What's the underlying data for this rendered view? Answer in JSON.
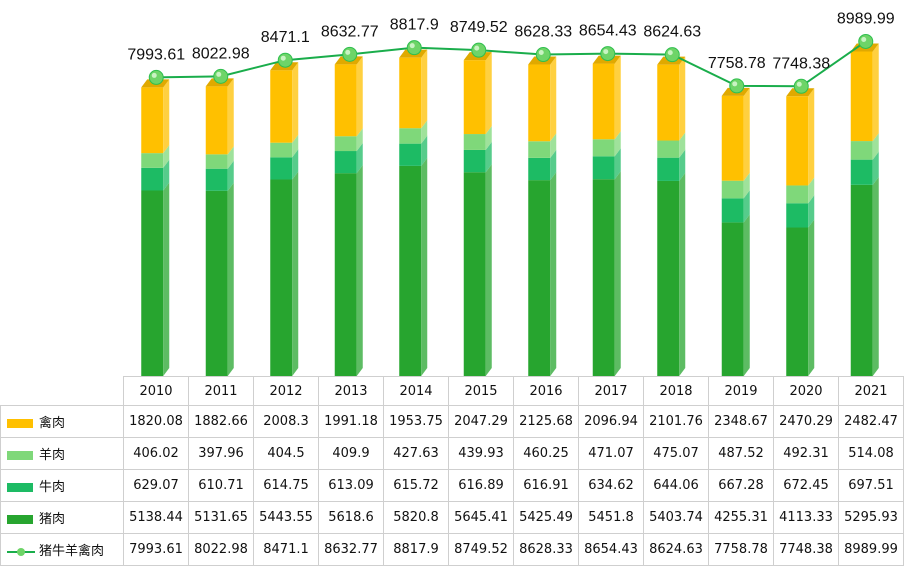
{
  "chart_data": {
    "type": "bar",
    "stacked": true,
    "categories": [
      "2010",
      "2011",
      "2012",
      "2013",
      "2014",
      "2015",
      "2016",
      "2017",
      "2018",
      "2019",
      "2020",
      "2021"
    ],
    "series": [
      {
        "name": "禽肉",
        "color": "#ffc000",
        "values": [
          1820.08,
          1882.66,
          2008.3,
          1991.18,
          1953.75,
          2047.29,
          2125.68,
          2096.94,
          2101.76,
          2348.67,
          2470.29,
          2482.47
        ]
      },
      {
        "name": "羊肉",
        "color": "#7fd87a",
        "values": [
          406.02,
          397.96,
          404.5,
          409.9,
          427.63,
          439.93,
          460.25,
          471.07,
          475.07,
          487.52,
          492.31,
          514.08
        ]
      },
      {
        "name": "牛肉",
        "color": "#1dbb64",
        "values": [
          629.07,
          610.71,
          614.75,
          613.09,
          615.72,
          616.89,
          616.91,
          634.62,
          644.06,
          667.28,
          672.45,
          697.51
        ]
      },
      {
        "name": "猪肉",
        "color": "#27a52f",
        "values": [
          5138.44,
          5131.65,
          5443.55,
          5618.6,
          5820.8,
          5645.41,
          5425.49,
          5451.8,
          5403.74,
          4255.31,
          4113.33,
          5295.93
        ]
      }
    ],
    "line": {
      "name": "猪牛羊禽肉",
      "color": "#1aad4b",
      "values": [
        7993.61,
        8022.98,
        8471.1,
        8632.77,
        8817.9,
        8749.52,
        8628.33,
        8654.43,
        8624.63,
        7758.78,
        7748.38,
        8989.99
      ],
      "labels": [
        "7993.61",
        "8022.98",
        "8471.1",
        "8632.77",
        "8817.9",
        "8749.52",
        "8628.33",
        "8654.43",
        "8624.63",
        "7758.78",
        "7748.38",
        "8989.99"
      ]
    },
    "table_rows": [
      {
        "name": "禽肉",
        "values": [
          "1820.08",
          "1882.66",
          "2008.3",
          "1991.18",
          "1953.75",
          "2047.29",
          "2125.68",
          "2096.94",
          "2101.76",
          "2348.67",
          "2470.29",
          "2482.47"
        ]
      },
      {
        "name": "羊肉",
        "values": [
          "406.02",
          "397.96",
          "404.5",
          "409.9",
          "427.63",
          "439.93",
          "460.25",
          "471.07",
          "475.07",
          "487.52",
          "492.31",
          "514.08"
        ]
      },
      {
        "name": "牛肉",
        "values": [
          "629.07",
          "610.71",
          "614.75",
          "613.09",
          "615.72",
          "616.89",
          "616.91",
          "634.62",
          "644.06",
          "667.28",
          "672.45",
          "697.51"
        ]
      },
      {
        "name": "猪肉",
        "values": [
          "5138.44",
          "5131.65",
          "5443.55",
          "5618.6",
          "5820.8",
          "5645.41",
          "5425.49",
          "5451.8",
          "5403.74",
          "4255.31",
          "4113.33",
          "5295.93"
        ]
      },
      {
        "name": "猪牛羊禽肉",
        "values": [
          "7993.61",
          "8022.98",
          "8471.1",
          "8632.77",
          "8817.9",
          "8749.52",
          "8628.33",
          "8654.43",
          "8624.63",
          "7758.78",
          "7748.38",
          "8989.99"
        ]
      }
    ],
    "ylim": [
      0,
      10800
    ],
    "legend": "data-table",
    "grid": false
  }
}
